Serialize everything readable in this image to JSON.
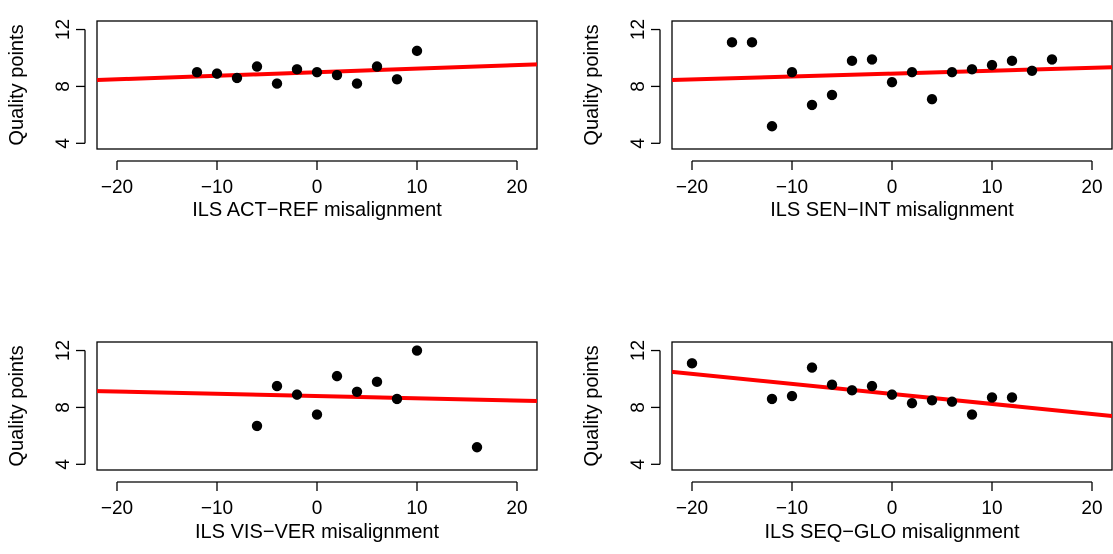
{
  "chart_data": [
    {
      "type": "scatter",
      "xlabel": "ILS ACT−REF misalignment",
      "ylabel": "Quality points",
      "xticks": [
        "−20",
        "−10",
        "0",
        "10",
        "20"
      ],
      "yticks": [
        "4",
        "8",
        "12"
      ],
      "xlim": [
        -22,
        22
      ],
      "ylim": [
        3.6,
        12.6
      ],
      "grid": false,
      "points": [
        {
          "x": -12,
          "y": 9.0
        },
        {
          "x": -10,
          "y": 8.9
        },
        {
          "x": -8,
          "y": 8.6
        },
        {
          "x": -6,
          "y": 9.4
        },
        {
          "x": -4,
          "y": 8.2
        },
        {
          "x": -2,
          "y": 9.2
        },
        {
          "x": 0,
          "y": 9.0
        },
        {
          "x": 2,
          "y": 8.8
        },
        {
          "x": 4,
          "y": 8.2
        },
        {
          "x": 6,
          "y": 9.4
        },
        {
          "x": 8,
          "y": 8.5
        },
        {
          "x": 10,
          "y": 10.5
        }
      ],
      "fit_line": {
        "color": "#ff0000",
        "x": [
          -22,
          22
        ],
        "y": [
          8.45,
          9.55
        ]
      }
    },
    {
      "type": "scatter",
      "xlabel": "ILS SEN−INT misalignment",
      "ylabel": "Quality points",
      "xticks": [
        "−20",
        "−10",
        "0",
        "10",
        "20"
      ],
      "yticks": [
        "4",
        "8",
        "12"
      ],
      "xlim": [
        -22,
        22
      ],
      "ylim": [
        3.6,
        12.6
      ],
      "grid": false,
      "points": [
        {
          "x": -16,
          "y": 11.1
        },
        {
          "x": -14,
          "y": 11.1
        },
        {
          "x": -12,
          "y": 5.2
        },
        {
          "x": -10,
          "y": 9.0
        },
        {
          "x": -8,
          "y": 6.7
        },
        {
          "x": -6,
          "y": 7.4
        },
        {
          "x": -4,
          "y": 9.8
        },
        {
          "x": -2,
          "y": 9.9
        },
        {
          "x": 0,
          "y": 8.3
        },
        {
          "x": 2,
          "y": 9.0
        },
        {
          "x": 4,
          "y": 7.1
        },
        {
          "x": 6,
          "y": 9.0
        },
        {
          "x": 8,
          "y": 9.2
        },
        {
          "x": 10,
          "y": 9.5
        },
        {
          "x": 12,
          "y": 9.8
        },
        {
          "x": 14,
          "y": 9.1
        },
        {
          "x": 16,
          "y": 9.9
        }
      ],
      "fit_line": {
        "color": "#ff0000",
        "x": [
          -22,
          22
        ],
        "y": [
          8.45,
          9.35
        ]
      }
    },
    {
      "type": "scatter",
      "xlabel": "ILS VIS−VER misalignment",
      "ylabel": "Quality points",
      "xticks": [
        "−20",
        "−10",
        "0",
        "10",
        "20"
      ],
      "yticks": [
        "4",
        "8",
        "12"
      ],
      "xlim": [
        -22,
        22
      ],
      "ylim": [
        3.6,
        12.6
      ],
      "grid": false,
      "points": [
        {
          "x": -6,
          "y": 6.7
        },
        {
          "x": -4,
          "y": 9.5
        },
        {
          "x": -2,
          "y": 8.9
        },
        {
          "x": 0,
          "y": 7.5
        },
        {
          "x": 2,
          "y": 10.2
        },
        {
          "x": 4,
          "y": 9.1
        },
        {
          "x": 6,
          "y": 9.8
        },
        {
          "x": 8,
          "y": 8.6
        },
        {
          "x": 10,
          "y": 12.0
        },
        {
          "x": 16,
          "y": 5.2
        }
      ],
      "fit_line": {
        "color": "#ff0000",
        "x": [
          -22,
          22
        ],
        "y": [
          9.15,
          8.45
        ]
      }
    },
    {
      "type": "scatter",
      "xlabel": "ILS SEQ−GLO misalignment",
      "ylabel": "Quality points",
      "xticks": [
        "−20",
        "−10",
        "0",
        "10",
        "20"
      ],
      "yticks": [
        "4",
        "8",
        "12"
      ],
      "xlim": [
        -22,
        22
      ],
      "ylim": [
        3.6,
        12.6
      ],
      "grid": false,
      "points": [
        {
          "x": -20,
          "y": 11.1
        },
        {
          "x": -12,
          "y": 8.6
        },
        {
          "x": -10,
          "y": 8.8
        },
        {
          "x": -8,
          "y": 10.8
        },
        {
          "x": -6,
          "y": 9.6
        },
        {
          "x": -4,
          "y": 9.2
        },
        {
          "x": -2,
          "y": 9.5
        },
        {
          "x": 0,
          "y": 8.9
        },
        {
          "x": 2,
          "y": 8.3
        },
        {
          "x": 4,
          "y": 8.5
        },
        {
          "x": 6,
          "y": 8.4
        },
        {
          "x": 8,
          "y": 7.5
        },
        {
          "x": 10,
          "y": 8.7
        },
        {
          "x": 12,
          "y": 8.7
        }
      ],
      "fit_line": {
        "color": "#ff0000",
        "x": [
          -22,
          22
        ],
        "y": [
          10.5,
          7.4
        ]
      }
    }
  ]
}
